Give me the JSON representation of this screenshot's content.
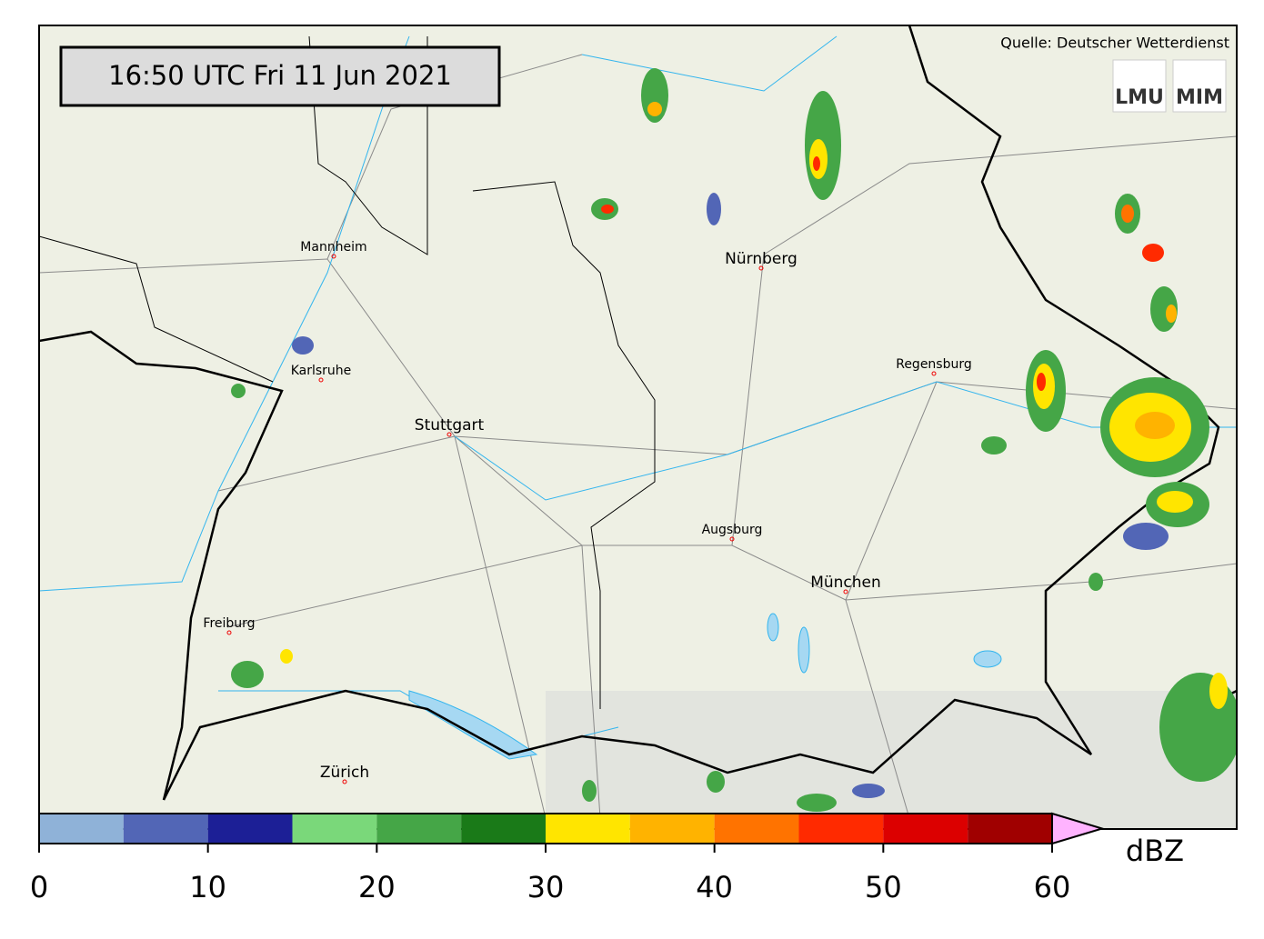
{
  "header": {
    "timestamp": "16:50 UTC  Fri 11 Jun 2021",
    "source": "Quelle: Deutscher Wetterdienst",
    "logos": [
      "LMU",
      "MIM"
    ]
  },
  "cities": [
    "Mannheim",
    "Nürnberg",
    "Karlsruhe",
    "Regensburg",
    "Stuttgart",
    "Augsburg",
    "München",
    "Freiburg",
    "Zürich"
  ],
  "colorbar": {
    "bounds": [
      0,
      5,
      10,
      15,
      20,
      25,
      30,
      35,
      40,
      45,
      50,
      55,
      60
    ],
    "colors": [
      "#8fb2d8",
      "#5266b6",
      "#1c1f96",
      "#7ad87a",
      "#45a647",
      "#1a7a18",
      "#ffe500",
      "#ffb300",
      "#ff7300",
      "#ff2a00",
      "#dc0000",
      "#a00000"
    ],
    "extend_color": "#ffb3ff",
    "ticks": [
      0,
      10,
      20,
      30,
      40,
      50,
      60
    ],
    "unit": "dBZ"
  }
}
